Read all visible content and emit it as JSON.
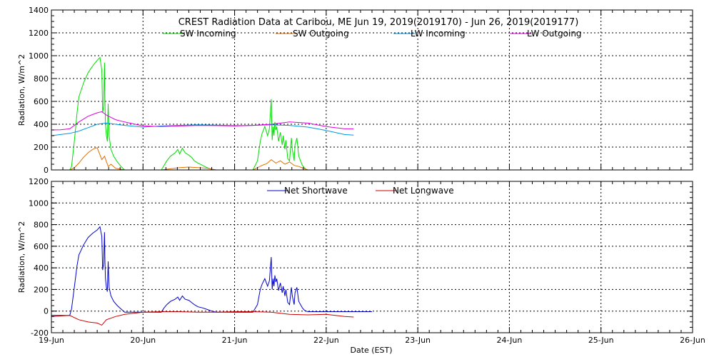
{
  "chart_data": [
    {
      "type": "line",
      "title": "CREST Radiation Data at Caribou, ME   Jun 19, 2019(2019170) - Jun 26, 2019(2019177)",
      "ylabel": "Radiation, W/m^2",
      "xlabel": "",
      "ylim": [
        0,
        1400
      ],
      "yticks": [
        0,
        200,
        400,
        600,
        800,
        1000,
        1200,
        1400
      ],
      "xlim": [
        0,
        7
      ],
      "grid": true,
      "legend_position": "top",
      "series": [
        {
          "name": "SW Incoming",
          "color": "#00dd00",
          "x": [
            0.0,
            0.2,
            0.22,
            0.25,
            0.28,
            0.3,
            0.35,
            0.4,
            0.45,
            0.5,
            0.53,
            0.55,
            0.56,
            0.57,
            0.58,
            0.585,
            0.59,
            0.6,
            0.61,
            0.62,
            0.63,
            0.65,
            0.68,
            0.72,
            0.76,
            0.8,
            0.9,
            1.0,
            1.2,
            1.23,
            1.26,
            1.3,
            1.35,
            1.38,
            1.4,
            1.43,
            1.46,
            1.5,
            1.53,
            1.56,
            1.6,
            1.65,
            1.7,
            1.75,
            1.8,
            1.9,
            2.0,
            2.2,
            2.25,
            2.28,
            2.3,
            2.33,
            2.36,
            2.38,
            2.4,
            2.41,
            2.42,
            2.43,
            2.44,
            2.45,
            2.46,
            2.48,
            2.5,
            2.52,
            2.53,
            2.55,
            2.56,
            2.58,
            2.6,
            2.62,
            2.63,
            2.65,
            2.66,
            2.68,
            2.7,
            2.72,
            2.74,
            2.76,
            2.78,
            2.8,
            2.85,
            2.9,
            3.0,
            3.5
          ],
          "values": [
            0,
            0,
            30,
            250,
            500,
            640,
            760,
            850,
            910,
            960,
            985,
            870,
            500,
            560,
            940,
            600,
            400,
            300,
            250,
            580,
            300,
            180,
            120,
            70,
            30,
            0,
            0,
            0,
            0,
            40,
            80,
            120,
            150,
            180,
            140,
            190,
            150,
            130,
            110,
            80,
            60,
            40,
            20,
            5,
            0,
            0,
            0,
            0,
            80,
            250,
            320,
            380,
            300,
            360,
            620,
            260,
            380,
            300,
            420,
            350,
            380,
            250,
            330,
            220,
            300,
            180,
            260,
            100,
            80,
            280,
            180,
            80,
            220,
            280,
            120,
            80,
            40,
            20,
            5,
            0,
            0,
            0,
            0,
            0
          ]
        },
        {
          "name": "SW Outgoing",
          "color": "#e07000",
          "x": [
            0.0,
            0.2,
            0.25,
            0.3,
            0.35,
            0.4,
            0.45,
            0.5,
            0.55,
            0.58,
            0.62,
            0.65,
            0.7,
            0.8,
            1.0,
            1.2,
            1.3,
            1.4,
            1.5,
            1.6,
            1.7,
            1.8,
            2.0,
            2.2,
            2.25,
            2.3,
            2.35,
            2.4,
            2.45,
            2.5,
            2.55,
            2.6,
            2.65,
            2.7,
            2.75,
            2.8,
            3.0,
            3.5
          ],
          "values": [
            0,
            0,
            20,
            60,
            110,
            150,
            180,
            195,
            90,
            120,
            30,
            50,
            15,
            0,
            0,
            0,
            10,
            20,
            25,
            20,
            15,
            0,
            0,
            0,
            20,
            40,
            55,
            90,
            60,
            80,
            50,
            70,
            40,
            30,
            15,
            0,
            0,
            0
          ]
        },
        {
          "name": "LW Incoming",
          "color": "#0096e6",
          "x": [
            0.0,
            0.1,
            0.2,
            0.3,
            0.4,
            0.5,
            0.6,
            0.7,
            0.8,
            1.0,
            1.2,
            1.4,
            1.6,
            1.8,
            2.0,
            2.2,
            2.4,
            2.6,
            2.8,
            3.0,
            3.2,
            3.3
          ],
          "values": [
            300,
            310,
            320,
            340,
            370,
            400,
            410,
            400,
            390,
            375,
            385,
            390,
            395,
            392,
            388,
            390,
            395,
            390,
            375,
            345,
            310,
            305
          ]
        },
        {
          "name": "LW Outgoing",
          "color": "#e000e0",
          "x": [
            0.0,
            0.1,
            0.2,
            0.3,
            0.4,
            0.5,
            0.55,
            0.6,
            0.7,
            0.8,
            1.0,
            1.2,
            1.4,
            1.6,
            1.8,
            2.0,
            2.2,
            2.4,
            2.6,
            2.8,
            3.0,
            3.2,
            3.3
          ],
          "values": [
            350,
            352,
            360,
            420,
            470,
            500,
            510,
            480,
            440,
            420,
            385,
            380,
            385,
            390,
            388,
            385,
            390,
            400,
            420,
            410,
            380,
            360,
            360
          ]
        }
      ]
    },
    {
      "type": "line",
      "title": "",
      "ylabel": "Radiation, W/m^2",
      "xlabel": "Date (EST)",
      "ylim": [
        -200,
        1200
      ],
      "yticks": [
        -200,
        0,
        200,
        400,
        600,
        800,
        1000,
        1200
      ],
      "xlim": [
        0,
        7
      ],
      "x_tick_labels": [
        "19-Jun",
        "20-Jun",
        "21-Jun",
        "22-Jun",
        "23-Jun",
        "24-Jun",
        "25-Jun",
        "26-Jun"
      ],
      "grid": true,
      "legend_position": "top",
      "series": [
        {
          "name": "Net Shortwave",
          "color": "#0000cc",
          "x": [
            0.0,
            0.2,
            0.22,
            0.25,
            0.28,
            0.3,
            0.35,
            0.4,
            0.45,
            0.5,
            0.53,
            0.55,
            0.56,
            0.57,
            0.58,
            0.585,
            0.59,
            0.6,
            0.61,
            0.62,
            0.63,
            0.65,
            0.68,
            0.72,
            0.76,
            0.8,
            0.9,
            1.0,
            1.2,
            1.23,
            1.26,
            1.3,
            1.35,
            1.38,
            1.4,
            1.43,
            1.46,
            1.5,
            1.53,
            1.56,
            1.6,
            1.65,
            1.7,
            1.75,
            1.8,
            1.9,
            2.0,
            2.2,
            2.25,
            2.28,
            2.3,
            2.33,
            2.36,
            2.38,
            2.4,
            2.41,
            2.42,
            2.43,
            2.44,
            2.45,
            2.46,
            2.48,
            2.5,
            2.52,
            2.53,
            2.55,
            2.56,
            2.58,
            2.6,
            2.62,
            2.63,
            2.65,
            2.66,
            2.68,
            2.7,
            2.72,
            2.74,
            2.76,
            2.78,
            2.8,
            2.85,
            2.9,
            3.0,
            3.2,
            3.5
          ],
          "values": [
            -40,
            -40,
            20,
            220,
            420,
            520,
            610,
            680,
            720,
            750,
            780,
            690,
            380,
            440,
            730,
            460,
            300,
            220,
            180,
            460,
            220,
            140,
            90,
            50,
            20,
            -10,
            -10,
            -10,
            -10,
            30,
            60,
            90,
            110,
            130,
            100,
            140,
            110,
            100,
            80,
            60,
            40,
            30,
            15,
            0,
            -10,
            -10,
            -10,
            -10,
            60,
            200,
            250,
            300,
            230,
            280,
            500,
            200,
            300,
            230,
            330,
            270,
            300,
            190,
            260,
            170,
            230,
            140,
            200,
            80,
            60,
            220,
            140,
            60,
            170,
            220,
            90,
            60,
            30,
            10,
            0,
            -5,
            -5,
            -5,
            -5,
            -5,
            -5
          ]
        },
        {
          "name": "Net Longwave",
          "color": "#cc0000",
          "x": [
            0.0,
            0.1,
            0.2,
            0.3,
            0.4,
            0.5,
            0.55,
            0.6,
            0.7,
            0.8,
            1.0,
            1.2,
            1.4,
            1.6,
            1.8,
            2.0,
            2.2,
            2.4,
            2.5,
            2.6,
            2.8,
            3.0,
            3.2,
            3.3
          ],
          "values": [
            -50,
            -45,
            -40,
            -80,
            -100,
            -110,
            -130,
            -80,
            -50,
            -30,
            -10,
            -5,
            -5,
            -10,
            -10,
            -5,
            -5,
            -10,
            -20,
            -30,
            -35,
            -30,
            -50,
            -55
          ]
        }
      ]
    }
  ]
}
